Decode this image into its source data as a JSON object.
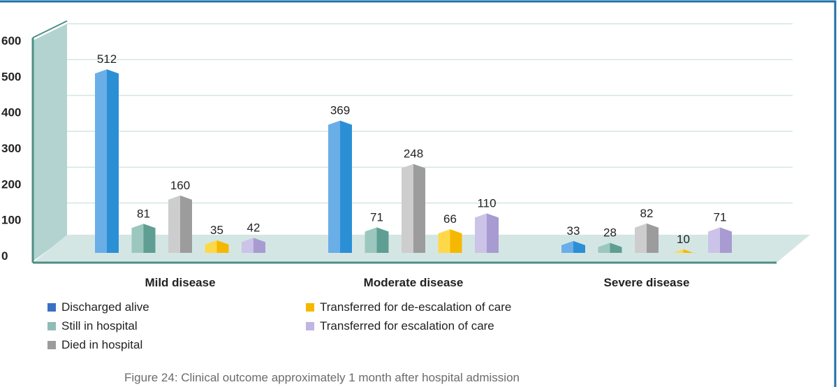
{
  "chart_data": {
    "type": "bar",
    "categories": [
      "Mild disease",
      "Moderate disease",
      "Severe disease"
    ],
    "series": [
      {
        "name": "Discharged alive",
        "values": [
          512,
          369,
          33
        ],
        "color": "#2b8fd6",
        "light": "#6aaee8"
      },
      {
        "name": "Still in hospital",
        "values": [
          81,
          71,
          28
        ],
        "color": "#5f9e93",
        "light": "#9bc7bf"
      },
      {
        "name": "Died in hospital",
        "values": [
          160,
          248,
          82
        ],
        "color": "#9c9c9c",
        "light": "#cdcdcd"
      },
      {
        "name": "Transferred for de-escalation of care",
        "values": [
          35,
          66,
          10
        ],
        "color": "#f5b800",
        "light": "#ffd84a"
      },
      {
        "name": "Transferred for escalation of care",
        "values": [
          42,
          110,
          71
        ],
        "color": "#a79bd1",
        "light": "#cbc3e8"
      }
    ],
    "y_ticks": [
      "0",
      "100",
      "200",
      "300",
      "400",
      "500",
      "600"
    ],
    "ylim": [
      0,
      600
    ],
    "grid": true,
    "legend_position": "bottom-left"
  },
  "caption": "Figure 24: Clinical outcome approximately 1 month after hospital admission",
  "colors": {
    "frame": "#1f6fa8",
    "wall": "#b2d3cf",
    "floor": "#d4e6e4",
    "axis": "#4d8f86",
    "grid": "#d2e6e3"
  }
}
